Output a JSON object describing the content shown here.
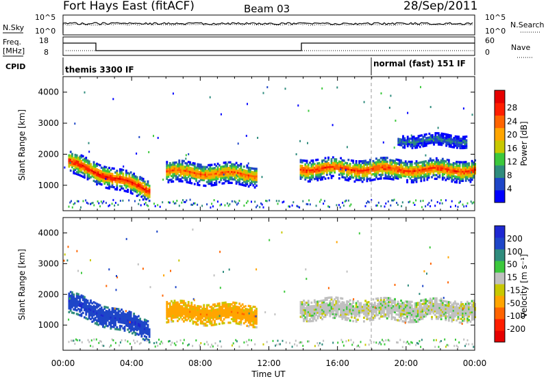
{
  "header": {
    "station": "Fort Hays East (fitACF)",
    "beam": "Beam 03",
    "date": "28/Sep/2011"
  },
  "strip_panels": {
    "nsky": {
      "label": "N.Sky",
      "tick_top": "10^5",
      "tick_bottom": "10^0"
    },
    "nsearch": {
      "label": "N.Search",
      "tick_top": "10^5",
      "tick_bottom": "10^0"
    },
    "freq": {
      "label_line1": "Freq.",
      "label_line2": "[MHz]",
      "tick_top": "18",
      "tick_bottom": "8"
    },
    "nave": {
      "label": "Nave",
      "tick_top": "60",
      "tick_bottom": "0"
    },
    "cpid": {
      "label": "CPID",
      "programs": [
        {
          "name": "themis 3300 IF",
          "start_hour": 0
        },
        {
          "name": "normal (fast) 151 IF",
          "start_hour": 18
        }
      ]
    }
  },
  "colors": {
    "power_scale": [
      "#0000ff",
      "#1e46c8",
      "#2f8c7d",
      "#3cc83c",
      "#c8c800",
      "#ffa500",
      "#ff6400",
      "#ff1e00",
      "#e60000"
    ],
    "velocity_scale": [
      "#1e28d2",
      "#1e46c8",
      "#2f8c7d",
      "#3cc83c",
      "#c0c0c0",
      "#c8c800",
      "#ffa500",
      "#ff6400",
      "#ff1e00",
      "#e60000"
    ]
  },
  "chart_data": [
    {
      "type": "heatmap",
      "panel": "power",
      "ylabel": "Slant Range [km]",
      "xlabel": "Time UT",
      "xlim": [
        0,
        24
      ],
      "ylim": [
        180,
        4500
      ],
      "x_ticks": [
        "00:00",
        "04:00",
        "08:00",
        "12:00",
        "16:00",
        "20:00",
        "00:00"
      ],
      "y_ticks": [
        "1000",
        "2000",
        "3000",
        "4000"
      ],
      "colorbar": {
        "label": "Power [dB]",
        "ticks": [
          "4",
          "8",
          "12",
          "16",
          "20",
          "24",
          "28"
        ]
      },
      "echo_bands": [
        {
          "t0": 0.3,
          "t1": 5.0,
          "range_start_km": 1700,
          "range_end_km": 800,
          "peak_db": 28
        },
        {
          "t0": 6.0,
          "t1": 11.3,
          "range_start_km": 1400,
          "range_end_km": 1300,
          "peak_db": 24
        },
        {
          "t0": 13.8,
          "t1": 24.0,
          "range_start_km": 1500,
          "range_end_km": 1450,
          "peak_db": 26
        },
        {
          "t0": 19.5,
          "t1": 23.5,
          "range_start_km": 2400,
          "range_end_km": 2400,
          "peak_db": 8
        }
      ]
    },
    {
      "type": "heatmap",
      "panel": "velocity",
      "ylabel": "Slant Range [km]",
      "xlabel": "Time UT",
      "xlim": [
        0,
        24
      ],
      "ylim": [
        180,
        4500
      ],
      "x_ticks": [
        "00:00",
        "04:00",
        "08:00",
        "12:00",
        "16:00",
        "20:00",
        "00:00"
      ],
      "y_ticks": [
        "1000",
        "2000",
        "3000",
        "4000"
      ],
      "colorbar": {
        "label": "Velocity [m s⁻¹]",
        "ticks": [
          "200",
          "100",
          "50",
          "15",
          "-15",
          "-50",
          "-100",
          "-200"
        ]
      },
      "echo_bands": [
        {
          "t0": 0.3,
          "t1": 5.0,
          "range_start_km": 1700,
          "range_end_km": 800,
          "velocity_ms": 150
        },
        {
          "t0": 6.0,
          "t1": 11.3,
          "range_start_km": 1400,
          "range_end_km": 1300,
          "velocity_ms": -60
        },
        {
          "t0": 13.8,
          "t1": 24.0,
          "range_start_km": 1500,
          "range_end_km": 1450,
          "velocity_ms": 0
        }
      ]
    }
  ]
}
